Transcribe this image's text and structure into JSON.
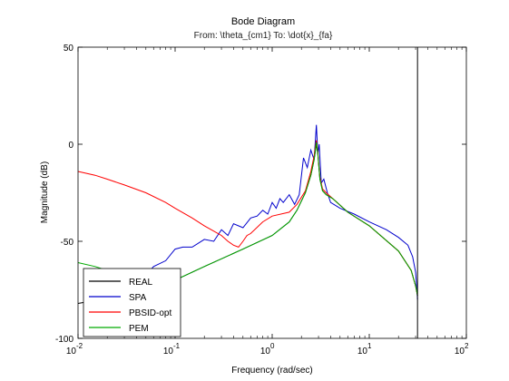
{
  "chart_data": {
    "type": "line",
    "title": "Bode Diagram",
    "subtitle": "From: \\theta_{cm1}  To: \\dot{x}_{fa}",
    "xlabel": "Frequency  (rad/sec)",
    "ylabel": "Magnitude (dB)",
    "xscale": "log",
    "xlim": [
      0.01,
      100
    ],
    "ylim": [
      -100,
      50
    ],
    "xticks": [
      {
        "base": "10",
        "exp": "-2",
        "value": 0.01
      },
      {
        "base": "10",
        "exp": "-1",
        "value": 0.1
      },
      {
        "base": "10",
        "exp": "0",
        "value": 1
      },
      {
        "base": "10",
        "exp": "1",
        "value": 10
      },
      {
        "base": "10",
        "exp": "2",
        "value": 100
      }
    ],
    "yticks": [
      {
        "label": "50",
        "value": 50
      },
      {
        "label": "0",
        "value": 0
      },
      {
        "label": "-50",
        "value": -50
      },
      {
        "label": "-100",
        "value": -100
      }
    ],
    "vertical_line": {
      "x": 31.4,
      "color": "#000000"
    },
    "legend_position": "bottom-left",
    "series": [
      {
        "name": "REAL",
        "color": "#000000",
        "x": [
          0.01,
          0.05,
          0.1,
          0.2,
          0.5,
          1.0,
          1.5,
          1.8,
          2.2,
          2.5,
          2.7,
          2.85,
          2.95,
          3.1,
          3.3,
          3.6,
          4.2,
          6.0,
          10,
          20,
          27,
          30,
          31.4
        ],
        "y": [
          -82,
          -76,
          -70,
          -63,
          -54,
          -47,
          -40,
          -34,
          -25,
          -16,
          -8,
          0,
          -5,
          -18,
          -24,
          -26,
          -28,
          -35,
          -42,
          -55,
          -65,
          -73,
          -78
        ]
      },
      {
        "name": "SPA",
        "color": "#0000cc",
        "x": [
          0.016,
          0.02,
          0.03,
          0.045,
          0.06,
          0.08,
          0.1,
          0.12,
          0.15,
          0.2,
          0.25,
          0.3,
          0.35,
          0.4,
          0.5,
          0.6,
          0.7,
          0.8,
          0.9,
          1.0,
          1.1,
          1.2,
          1.3,
          1.5,
          1.7,
          1.9,
          2.1,
          2.3,
          2.5,
          2.7,
          2.85,
          2.95,
          3.05,
          3.2,
          3.4,
          3.7,
          4.0,
          5.0,
          7.0,
          10,
          15,
          20,
          25,
          28,
          30,
          31.4
        ],
        "y": [
          -88,
          -85,
          -78,
          -70,
          -63,
          -60,
          -54,
          -53,
          -53,
          -49,
          -50,
          -44,
          -47,
          -41,
          -43,
          -38,
          -37,
          -34,
          -36,
          -30,
          -33,
          -28,
          -30,
          -26,
          -31,
          -26,
          -7,
          -12,
          -3,
          -8,
          10,
          -5,
          0,
          -20,
          -18,
          -25,
          -30,
          -33,
          -36,
          -40,
          -44,
          -48,
          -52,
          -58,
          -66,
          -80
        ]
      },
      {
        "name": "PBSID-opt",
        "color": "#ff0000",
        "x": [
          0.01,
          0.015,
          0.02,
          0.03,
          0.05,
          0.08,
          0.1,
          0.15,
          0.2,
          0.3,
          0.35,
          0.4,
          0.45,
          0.5,
          0.55,
          0.6,
          0.8,
          1.0,
          1.5,
          1.8,
          2.2,
          2.5,
          2.7,
          2.85,
          2.95,
          3.1,
          3.3,
          3.6,
          4.2,
          6.0,
          10,
          20,
          27,
          30,
          31.4
        ],
        "y": [
          -14,
          -16,
          -18,
          -21,
          -25,
          -30,
          -33,
          -38,
          -42,
          -47,
          -50,
          -52,
          -53,
          -50,
          -47,
          -46,
          -40,
          -37,
          -35,
          -31,
          -24,
          -14,
          -6,
          2,
          -4,
          -17,
          -23,
          -25,
          -28,
          -35,
          -42,
          -55,
          -65,
          -73,
          -78
        ]
      },
      {
        "name": "PEM",
        "color": "#00aa00",
        "x": [
          0.01,
          0.015,
          0.02,
          0.03,
          0.05,
          0.08,
          0.1,
          0.2,
          0.5,
          1.0,
          1.5,
          1.8,
          2.2,
          2.5,
          2.7,
          2.85,
          2.95,
          3.1,
          3.3,
          3.6,
          4.2,
          6.0,
          10,
          20,
          27,
          30,
          31.4
        ],
        "y": [
          -61,
          -63,
          -65,
          -69,
          -73,
          -72,
          -70,
          -63,
          -54,
          -47,
          -40,
          -34,
          -25,
          -16,
          -8,
          1,
          -5,
          -18,
          -24,
          -26,
          -28,
          -35,
          -42,
          -55,
          -65,
          -73,
          -78
        ]
      }
    ]
  }
}
